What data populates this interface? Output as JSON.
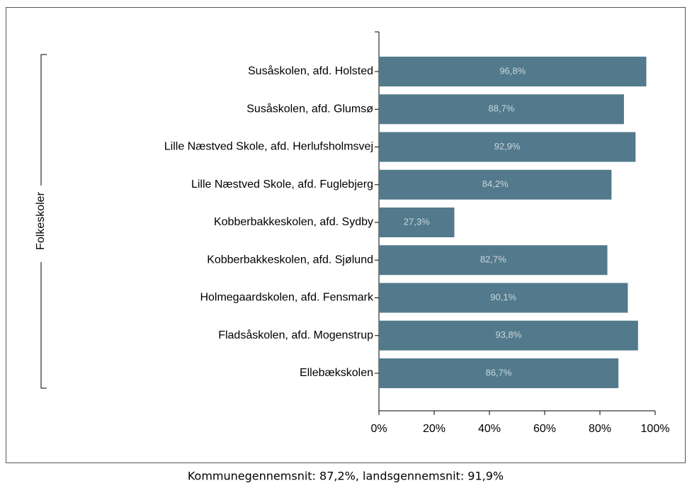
{
  "chart_data": {
    "type": "bar",
    "orientation": "horizontal",
    "group_label": "Folkeskoler",
    "categories": [
      "Susåskolen, afd. Holsted",
      "Susåskolen, afd. Glumsø",
      "Lille Næstved Skole, afd. Herlufsholmsvej",
      "Lille Næstved Skole, afd. Fuglebjerg",
      "Kobberbakkeskolen, afd. Sydby",
      "Kobberbakkeskolen, afd. Sjølund",
      "Holmegaardskolen, afd. Fensmark",
      "Fladsåskolen, afd. Mogenstrup",
      "Ellebækskolen"
    ],
    "values": [
      96.8,
      88.7,
      92.9,
      84.2,
      27.3,
      82.7,
      90.1,
      93.8,
      86.7
    ],
    "value_labels": [
      "96,8%",
      "88,7%",
      "92,9%",
      "84,2%",
      "27,3%",
      "82,7%",
      "90,1%",
      "93,8%",
      "86,7%"
    ],
    "color": "#527a8c",
    "xlim": [
      0,
      100
    ],
    "xticks": [
      {
        "value": 0,
        "label": "0%"
      },
      {
        "value": 20,
        "label": "20%"
      },
      {
        "value": 40,
        "label": "40%"
      },
      {
        "value": 60,
        "label": "60%"
      },
      {
        "value": 80,
        "label": "80%"
      },
      {
        "value": 100,
        "label": "100%"
      }
    ],
    "footnote": "Kommunegennemsnit: 87,2%, landsgennemsnit: 91,9%"
  }
}
